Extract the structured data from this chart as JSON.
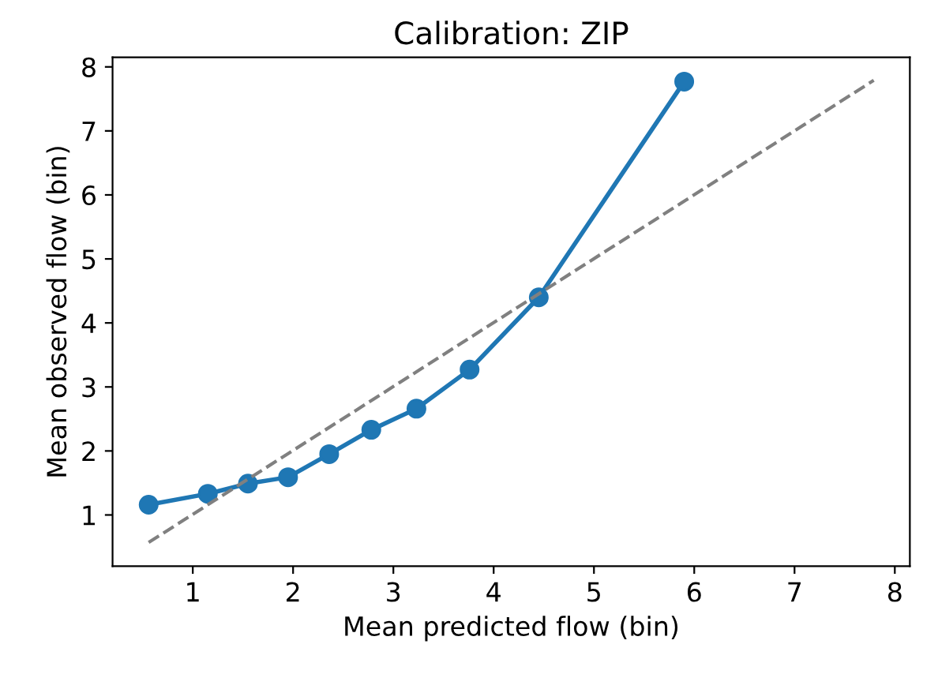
{
  "chart_data": {
    "type": "line",
    "title": "Calibration: ZIP",
    "xlabel": "Mean predicted flow (bin)",
    "ylabel": "Mean observed flow (bin)",
    "series": [
      {
        "color": "#1f77b4",
        "marker": "circle",
        "line_style": "solid",
        "x": [
          0.56,
          1.15,
          1.55,
          1.95,
          2.36,
          2.78,
          3.23,
          3.76,
          4.45,
          5.9
        ],
        "values": [
          1.16,
          1.33,
          1.49,
          1.59,
          1.95,
          2.33,
          2.66,
          3.27,
          4.4,
          7.77
        ]
      },
      {
        "color": "#808080",
        "marker": "none",
        "line_style": "dashed",
        "x": [
          0.56,
          7.79
        ],
        "values": [
          0.57,
          7.79
        ]
      }
    ],
    "xlim": [
      0.2,
      8.15
    ],
    "ylim": [
      0.2,
      8.15
    ],
    "xticks": [
      1,
      2,
      3,
      4,
      5,
      6,
      7,
      8
    ],
    "yticks": [
      1,
      2,
      3,
      4,
      5,
      6,
      7,
      8
    ],
    "grid": false
  }
}
